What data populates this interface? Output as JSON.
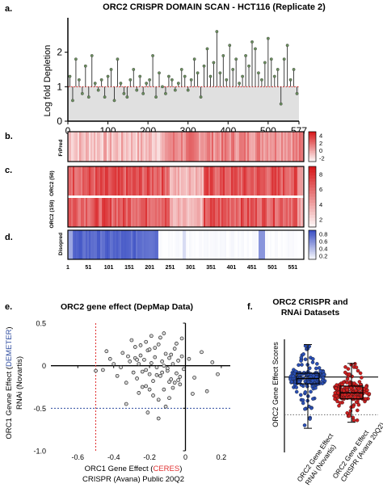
{
  "figure": {
    "panel_letters": [
      "a.",
      "b.",
      "c.",
      "d.",
      "e.",
      "f."
    ],
    "colors": {
      "red_scale_low": "#ffffff",
      "red_scale_high": "#d7191c",
      "blue_scale_low": "#ffffff",
      "blue_scale_high": "#3b4fc4",
      "lollipop_stem": "#2d2d2d",
      "lollipop_head": "#6b8f5e",
      "threshold_red": "#e03030",
      "threshold_blue": "#2f4da0",
      "scatter_fill": "#d9d9d9",
      "box_blue": "#2a4fb5",
      "box_red": "#cc1f1f"
    }
  },
  "chart_data": [
    {
      "id": "a",
      "type": "lollipop",
      "title": "ORC2 CRISPR DOMAIN SCAN - HCT116 (Replicate 2)",
      "ylabel": "Log fold Depletion",
      "xlabel": "",
      "xlim": [
        0,
        577
      ],
      "ylim": [
        0,
        3
      ],
      "xticks": [
        0,
        100,
        200,
        300,
        400,
        500,
        577
      ],
      "yticks": [
        0,
        1,
        2
      ],
      "threshold": 1,
      "positions": [
        5,
        12,
        20,
        28,
        36,
        44,
        52,
        60,
        68,
        76,
        84,
        92,
        100,
        108,
        116,
        124,
        132,
        140,
        148,
        156,
        164,
        172,
        180,
        188,
        196,
        204,
        212,
        220,
        228,
        236,
        244,
        252,
        260,
        268,
        276,
        284,
        292,
        300,
        308,
        316,
        324,
        332,
        340,
        348,
        356,
        364,
        372,
        380,
        388,
        396,
        404,
        412,
        420,
        428,
        436,
        444,
        452,
        460,
        468,
        476,
        484,
        492,
        500,
        508,
        516,
        524,
        532,
        540,
        548,
        556,
        564,
        572
      ],
      "values": [
        1.3,
        0.6,
        1.8,
        1.2,
        0.8,
        1.6,
        0.7,
        1.9,
        1.1,
        0.9,
        1.2,
        0.7,
        1.3,
        1.5,
        0.6,
        1.8,
        1.1,
        0.8,
        0.7,
        1.2,
        1.5,
        0.9,
        1.3,
        0.8,
        1.1,
        1.2,
        1.9,
        0.7,
        1.4,
        1.0,
        0.8,
        1.3,
        1.2,
        0.9,
        1.1,
        1.5,
        1.3,
        0.9,
        1.2,
        1.8,
        1.4,
        0.7,
        1.6,
        2.1,
        1.3,
        1.7,
        2.6,
        1.4,
        1.9,
        1.2,
        2.2,
        1.5,
        1.8,
        1.1,
        1.3,
        1.9,
        1.6,
        2.3,
        2.1,
        1.4,
        1.2,
        1.7,
        2.4,
        1.8,
        1.3,
        1.5,
        0.5,
        1.8,
        2.2,
        1.2,
        1.5,
        0.8
      ]
    },
    {
      "id": "b",
      "type": "heatmap",
      "row_labels": [
        "FrPred"
      ],
      "colorbar_ticks": [
        "4",
        "2",
        "0",
        "-2"
      ],
      "colorbar_range": [
        -2,
        4
      ]
    },
    {
      "id": "c",
      "type": "heatmap",
      "row_labels": [
        "ORC2 (50)",
        "ORC2 (150)"
      ],
      "colorbar_ticks": [
        "8",
        "6",
        "4",
        "2"
      ],
      "colorbar_range": [
        1,
        9
      ]
    },
    {
      "id": "d",
      "type": "heatmap",
      "row_labels": [
        "Disopred"
      ],
      "colorbar_ticks": [
        "0.8",
        "0.6",
        "0.4",
        "0.2"
      ],
      "colorbar_range": [
        0.1,
        0.9
      ],
      "xticks": [
        "1",
        "51",
        "101",
        "151",
        "201",
        "251",
        "301",
        "351",
        "401",
        "451",
        "501",
        "551"
      ]
    },
    {
      "id": "e",
      "type": "scatter",
      "title": "ORC2 gene effect (DepMap Data)",
      "xlabel_lines": [
        {
          "prefix": "ORC1 Gene Effect (",
          "highlight": "CERES",
          "suffix": ")"
        },
        {
          "prefix": "CRISPR (Avana) Public 20Q2",
          "highlight": "",
          "suffix": ""
        }
      ],
      "ylabel_lines": [
        {
          "prefix": "ORC1 Gevne Effect (",
          "highlight": "DEMETER",
          "suffix": ")"
        },
        {
          "prefix": "RNAi (Novartis)",
          "highlight": "",
          "suffix": ""
        }
      ],
      "xlim": [
        -0.75,
        0.25
      ],
      "ylim": [
        -1.0,
        0.5
      ],
      "xticks": [
        "-0.6",
        "-0.4",
        "-0.2",
        "0",
        "0.2"
      ],
      "yticks": [
        "0.5",
        "0",
        "-0.5",
        "-1.0"
      ],
      "vline_x": -0.5,
      "hline_y": -0.5,
      "points_x": [
        -0.46,
        -0.42,
        -0.38,
        -0.35,
        -0.33,
        -0.31,
        -0.29,
        -0.28,
        -0.27,
        -0.26,
        -0.25,
        -0.24,
        -0.23,
        -0.22,
        -0.21,
        -0.2,
        -0.19,
        -0.18,
        -0.17,
        -0.16,
        -0.15,
        -0.14,
        -0.13,
        -0.12,
        -0.11,
        -0.1,
        -0.09,
        -0.08,
        -0.07,
        -0.06,
        -0.05,
        -0.04,
        -0.03,
        -0.02,
        -0.01,
        0.02,
        0.05,
        0.09,
        0.12,
        0.15,
        -0.3,
        -0.26,
        -0.22,
        -0.18,
        -0.14,
        -0.1,
        -0.06,
        -0.24,
        -0.2,
        -0.16,
        -0.12,
        -0.08,
        -0.04,
        -0.28,
        -0.22,
        -0.17,
        -0.13,
        -0.09,
        -0.05,
        -0.36,
        -0.32,
        -0.19,
        -0.15,
        -0.11,
        -0.07,
        -0.03,
        -0.21,
        -0.25,
        -0.33,
        -0.4,
        0.18,
        -0.5,
        -0.44,
        -0.02,
        0.04,
        -0.15,
        -0.27,
        -0.2,
        -0.12,
        -0.09
      ],
      "points_y": [
        -0.05,
        0.08,
        -0.12,
        0.15,
        -0.2,
        0.05,
        -0.08,
        0.22,
        -0.15,
        0.02,
        0.12,
        -0.25,
        0.07,
        -0.05,
        0.18,
        -0.1,
        0.03,
        -0.18,
        0.1,
        -0.02,
        0.25,
        -0.12,
        0.05,
        -0.28,
        0.14,
        -0.06,
        0.09,
        -0.16,
        0.02,
        0.2,
        -0.09,
        0.06,
        -0.22,
        0.11,
        -0.04,
        0.08,
        -0.14,
        0.16,
        -0.3,
        0.04,
        0.3,
        -0.32,
        0.28,
        -0.35,
        0.33,
        -0.03,
        -0.2,
        -0.07,
        0.19,
        -0.11,
        0.0,
        0.13,
        -0.17,
        0.09,
        -0.24,
        0.21,
        -0.08,
        -0.38,
        0.26,
        -0.02,
        0.11,
        0.35,
        -0.4,
        -0.48,
        -0.26,
        -0.13,
        -0.55,
        0.24,
        -0.45,
        0.02,
        -0.1,
        -0.06,
        0.17,
        0.32,
        -0.33,
        -0.62,
        0.07,
        -0.28,
        0.38,
        -0.19
      ]
    },
    {
      "id": "f",
      "type": "box",
      "title_lines": [
        "ORC2 CRISPR and",
        "RNAi Datasets"
      ],
      "ylabel": "ORC2 Gene Effect Scores",
      "ylim": [
        -1.0,
        0.5
      ],
      "yticks": [],
      "hline_y": -0.5,
      "categories": [
        "ORC2 Gene Effect RNAi (Novartis)",
        "ORC2 Gene Effect CRISPR (Avana 20Q2)"
      ],
      "category_label_lines": [
        [
          "ORC2 Gene Effect",
          "RNAi (Novartis)"
        ],
        [
          "ORC2 Gene Effect",
          "CRISPR (Avana 20Q2)"
        ]
      ],
      "series": [
        {
          "q1": -0.09,
          "median": -0.02,
          "q3": 0.05,
          "min": -0.68,
          "max": 0.43
        },
        {
          "q1": -0.29,
          "median": -0.21,
          "q3": -0.12,
          "min": -0.6,
          "max": 0.18
        }
      ]
    }
  ]
}
